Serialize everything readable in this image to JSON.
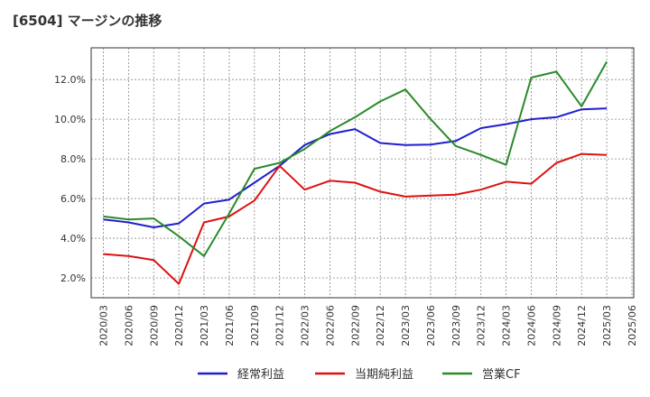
{
  "title": "[6504]  マージンの推移",
  "chart_data": {
    "type": "line",
    "title": "[6504]  マージンの推移",
    "x": [
      "2020/03",
      "2020/06",
      "2020/09",
      "2020/12",
      "2021/03",
      "2021/06",
      "2021/09",
      "2021/12",
      "2022/03",
      "2022/06",
      "2022/09",
      "2022/12",
      "2023/03",
      "2023/06",
      "2023/09",
      "2023/12",
      "2024/03",
      "2024/06",
      "2024/09",
      "2024/12",
      "2025/03",
      "2025/06"
    ],
    "y_ticks": [
      "2.0%",
      "4.0%",
      "6.0%",
      "8.0%",
      "10.0%",
      "12.0%"
    ],
    "ylim": [
      1.0,
      13.6
    ],
    "grid": true,
    "legend_position": "bottom",
    "series": [
      {
        "name": "経常利益",
        "color": "#1f1fcc",
        "values": [
          4.95,
          4.8,
          4.55,
          4.75,
          5.75,
          5.95,
          6.8,
          7.65,
          8.7,
          9.25,
          9.5,
          8.8,
          8.7,
          8.72,
          8.9,
          9.55,
          9.75,
          10.0,
          10.1,
          10.5,
          10.55,
          null
        ]
      },
      {
        "name": "当期純利益",
        "color": "#dd1111",
        "values": [
          3.2,
          3.1,
          2.9,
          1.7,
          4.8,
          5.1,
          5.9,
          7.65,
          6.45,
          6.9,
          6.8,
          6.35,
          6.1,
          6.15,
          6.2,
          6.45,
          6.85,
          6.75,
          7.8,
          8.25,
          8.2,
          null
        ]
      },
      {
        "name": "営業CF",
        "color": "#2a8a2a",
        "values": [
          5.1,
          4.95,
          5.0,
          4.1,
          3.1,
          5.25,
          7.5,
          7.8,
          8.5,
          9.4,
          10.1,
          10.9,
          11.5,
          10.0,
          8.65,
          8.2,
          7.7,
          12.1,
          12.4,
          10.65,
          12.9,
          null
        ]
      }
    ]
  }
}
